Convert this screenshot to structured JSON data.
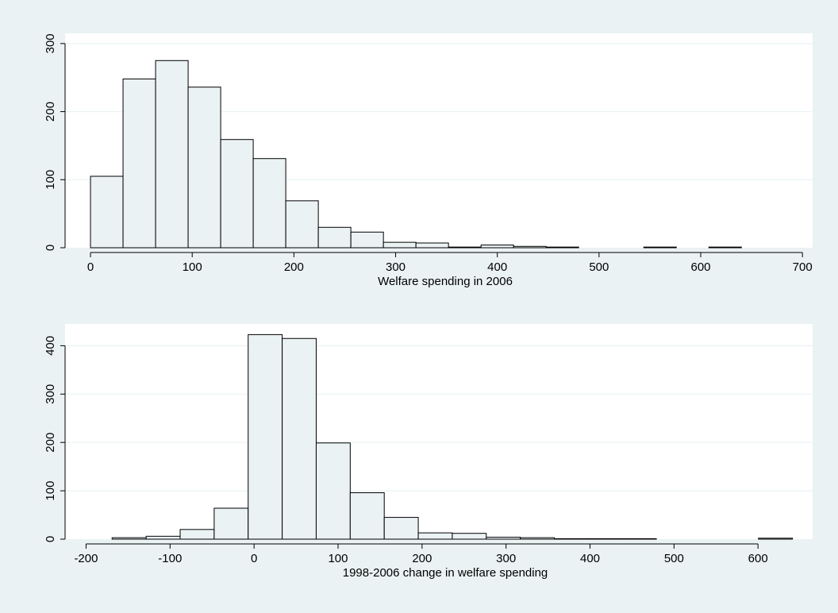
{
  "background_color": "#eaf2f3",
  "plot_background_color": "#ffffff",
  "bar_fill_color": "#eaf2f3",
  "bar_stroke_color": "#000000",
  "grid_color": "#eaf2f3",
  "chart_data": [
    {
      "type": "bar",
      "title": "",
      "xlabel": "Welfare spending in 2006",
      "ylabel": "",
      "xlim": [
        -25,
        710
      ],
      "ylim": [
        0,
        315
      ],
      "xticks": [
        0,
        100,
        200,
        300,
        400,
        500,
        600,
        700
      ],
      "yticks": [
        0,
        100,
        200,
        300
      ],
      "grid": true,
      "bin_width": 32,
      "bin_starts": [
        0,
        32,
        64,
        96,
        128,
        160,
        192,
        224,
        256,
        288,
        320,
        352,
        384,
        416,
        448,
        480,
        512,
        544,
        576,
        608,
        640
      ],
      "values": [
        105,
        248,
        275,
        236,
        159,
        131,
        69,
        30,
        23,
        8,
        7,
        1,
        4,
        2,
        1,
        0,
        0,
        1,
        0,
        1,
        0
      ]
    },
    {
      "type": "bar",
      "title": "",
      "xlabel": "1998-2006 change in welfare spending",
      "ylabel": "",
      "xlim": [
        -225,
        665
      ],
      "ylim": [
        0,
        445
      ],
      "xticks": [
        -200,
        -100,
        0,
        100,
        200,
        300,
        400,
        500,
        600
      ],
      "yticks": [
        0,
        100,
        200,
        300,
        400
      ],
      "grid": true,
      "bin_width": 40.5,
      "bin_starts": [
        -169,
        -128.5,
        -88,
        -47.5,
        -7,
        33.5,
        74,
        114.5,
        155,
        195.5,
        236,
        276.5,
        317,
        357.5,
        398,
        438.5,
        479,
        519.5,
        560,
        600.5
      ],
      "values": [
        3,
        6,
        20,
        64,
        423,
        415,
        199,
        96,
        45,
        13,
        12,
        4,
        3,
        1,
        1,
        1,
        0,
        0,
        0,
        2
      ]
    }
  ]
}
